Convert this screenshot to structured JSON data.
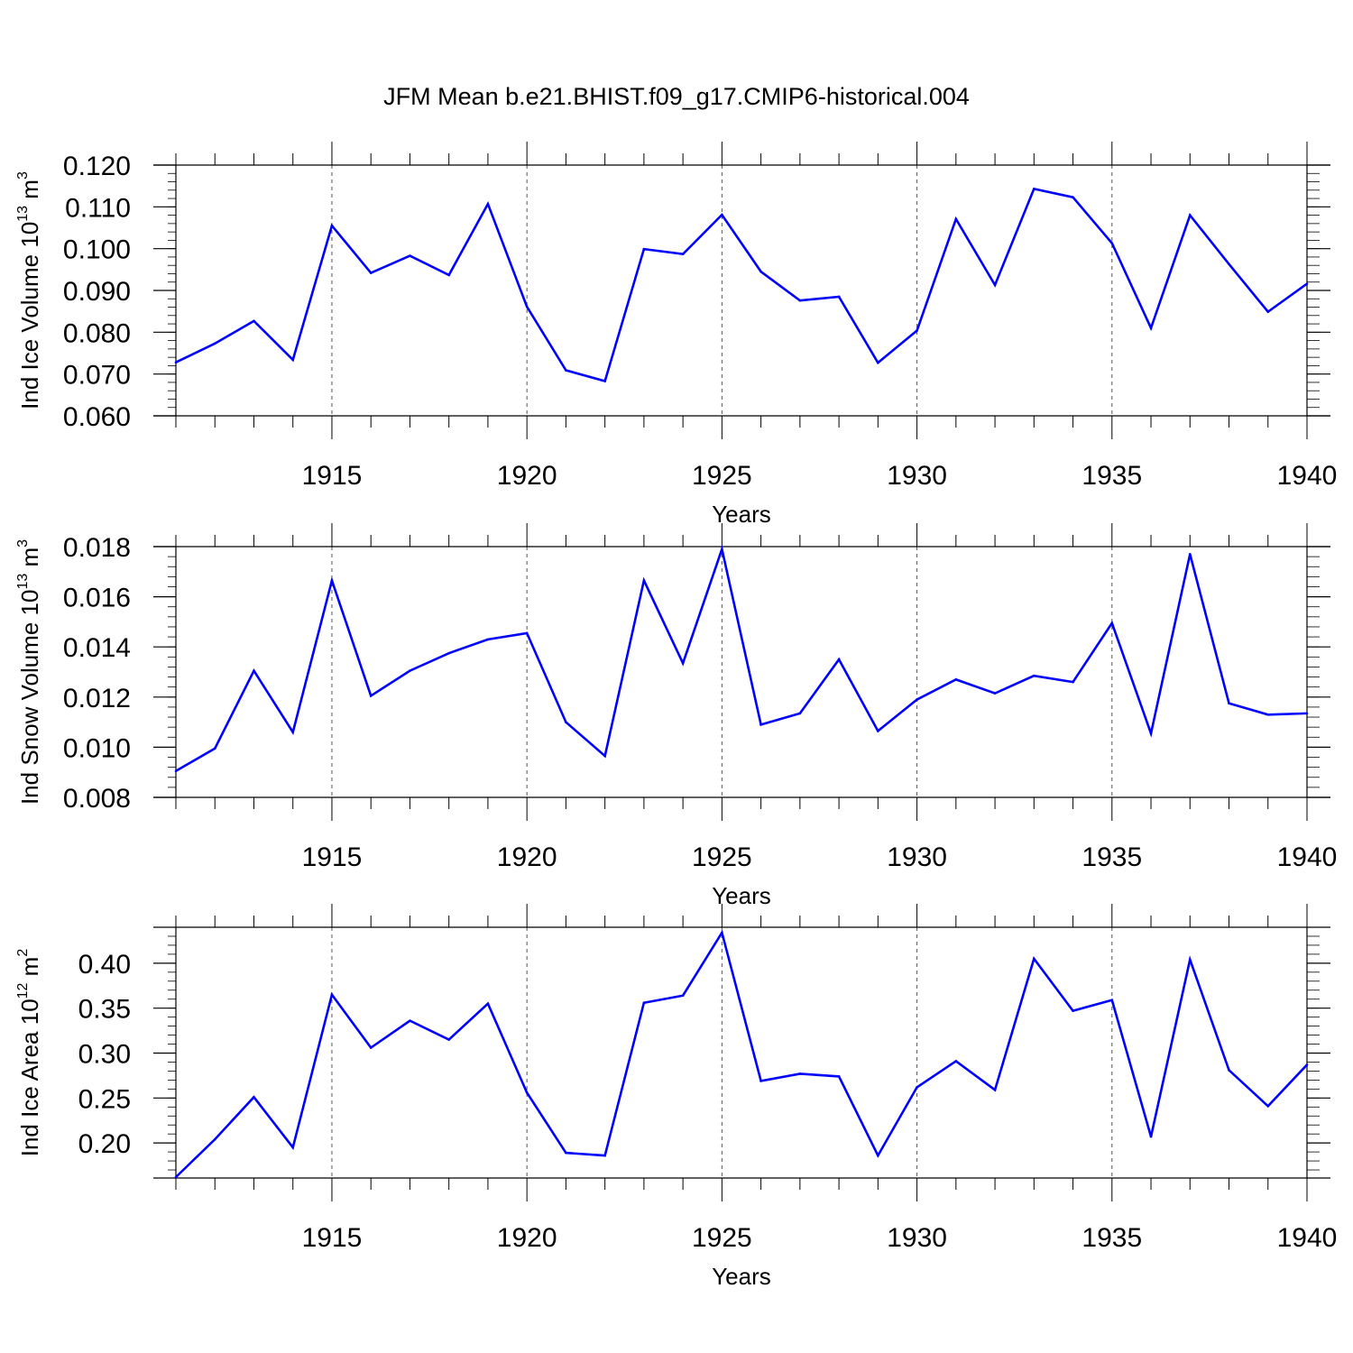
{
  "title": "JFM Mean b.e21.BHIST.f09_g17.CMIP6-historical.004",
  "colors": {
    "line": "#0000ff",
    "axis": "#000000",
    "grid": "#555555"
  },
  "chart_data": [
    {
      "type": "line",
      "ylabel": "Ind Ice Volume 10",
      "ylabel_sup": "13",
      "ylabel_unit": " m",
      "ylabel_unit_sup": "3",
      "xlabel": "Years",
      "xlim": [
        1911,
        1940
      ],
      "ylim": [
        0.06,
        0.12
      ],
      "yticks": [
        0.06,
        0.07,
        0.08,
        0.09,
        0.1,
        0.11,
        0.12
      ],
      "ytick_labels": [
        "0.060",
        "0.070",
        "0.080",
        "0.090",
        "0.100",
        "0.110",
        "0.120"
      ],
      "xticks": [
        1915,
        1920,
        1925,
        1930,
        1935,
        1940
      ],
      "xtick_labels": [
        "1915",
        "1920",
        "1925",
        "1930",
        "1935",
        "1940"
      ],
      "x": [
        1911,
        1912,
        1913,
        1914,
        1915,
        1916,
        1917,
        1918,
        1919,
        1920,
        1921,
        1922,
        1923,
        1924,
        1925,
        1926,
        1927,
        1928,
        1929,
        1930,
        1931,
        1932,
        1933,
        1934,
        1935,
        1936,
        1937,
        1938,
        1939,
        1940
      ],
      "values": [
        0.0728,
        0.0773,
        0.0827,
        0.0734,
        0.1055,
        0.0942,
        0.0983,
        0.0937,
        0.1107,
        0.0861,
        0.0709,
        0.0683,
        0.0999,
        0.0987,
        0.1081,
        0.0945,
        0.0876,
        0.0885,
        0.0727,
        0.0804,
        0.1071,
        0.0913,
        0.1143,
        0.1123,
        0.1013,
        0.081,
        0.108,
        0.0963,
        0.0849,
        0.0916
      ]
    },
    {
      "type": "line",
      "ylabel": "Ind Snow Volume 10",
      "ylabel_sup": "13",
      "ylabel_unit": " m",
      "ylabel_unit_sup": "3",
      "xlabel": "Years",
      "xlim": [
        1911,
        1940
      ],
      "ylim": [
        0.008,
        0.018
      ],
      "yticks": [
        0.008,
        0.01,
        0.012,
        0.014,
        0.016,
        0.018
      ],
      "ytick_labels": [
        "0.008",
        "0.010",
        "0.012",
        "0.014",
        "0.016",
        "0.018"
      ],
      "xticks": [
        1915,
        1920,
        1925,
        1930,
        1935,
        1940
      ],
      "xtick_labels": [
        "1915",
        "1920",
        "1925",
        "1930",
        "1935",
        "1940"
      ],
      "x": [
        1911,
        1912,
        1913,
        1914,
        1915,
        1916,
        1917,
        1918,
        1919,
        1920,
        1921,
        1922,
        1923,
        1924,
        1925,
        1926,
        1927,
        1928,
        1929,
        1930,
        1931,
        1932,
        1933,
        1934,
        1935,
        1936,
        1937,
        1938,
        1939,
        1940
      ],
      "values": [
        0.00905,
        0.00995,
        0.01305,
        0.0106,
        0.01665,
        0.01205,
        0.01305,
        0.01375,
        0.0143,
        0.01455,
        0.011,
        0.00965,
        0.01665,
        0.01335,
        0.0179,
        0.0109,
        0.01135,
        0.0135,
        0.01065,
        0.0119,
        0.0127,
        0.01215,
        0.01285,
        0.0126,
        0.01495,
        0.01055,
        0.0177,
        0.01175,
        0.0113,
        0.01135
      ]
    },
    {
      "type": "line",
      "ylabel": "Ind Ice Area 10",
      "ylabel_sup": "12",
      "ylabel_unit": " m",
      "ylabel_unit_sup": "2",
      "xlabel": "Years",
      "xlim": [
        1911,
        1940
      ],
      "ylim": [
        0.161,
        0.44
      ],
      "yticks": [
        0.2,
        0.25,
        0.3,
        0.35,
        0.4
      ],
      "ytick_labels": [
        "0.20",
        "0.25",
        "0.30",
        "0.35",
        "0.40"
      ],
      "xticks": [
        1915,
        1920,
        1925,
        1930,
        1935,
        1940
      ],
      "xtick_labels": [
        "1915",
        "1920",
        "1925",
        "1930",
        "1935",
        "1940"
      ],
      "x": [
        1911,
        1912,
        1913,
        1914,
        1915,
        1916,
        1917,
        1918,
        1919,
        1920,
        1921,
        1922,
        1923,
        1924,
        1925,
        1926,
        1927,
        1928,
        1929,
        1930,
        1931,
        1932,
        1933,
        1934,
        1935,
        1936,
        1937,
        1938,
        1939,
        1940
      ],
      "values": [
        0.162,
        0.204,
        0.251,
        0.195,
        0.365,
        0.306,
        0.336,
        0.315,
        0.355,
        0.256,
        0.189,
        0.186,
        0.356,
        0.364,
        0.434,
        0.269,
        0.277,
        0.274,
        0.186,
        0.262,
        0.291,
        0.259,
        0.405,
        0.347,
        0.359,
        0.207,
        0.404,
        0.281,
        0.241,
        0.287
      ]
    }
  ]
}
